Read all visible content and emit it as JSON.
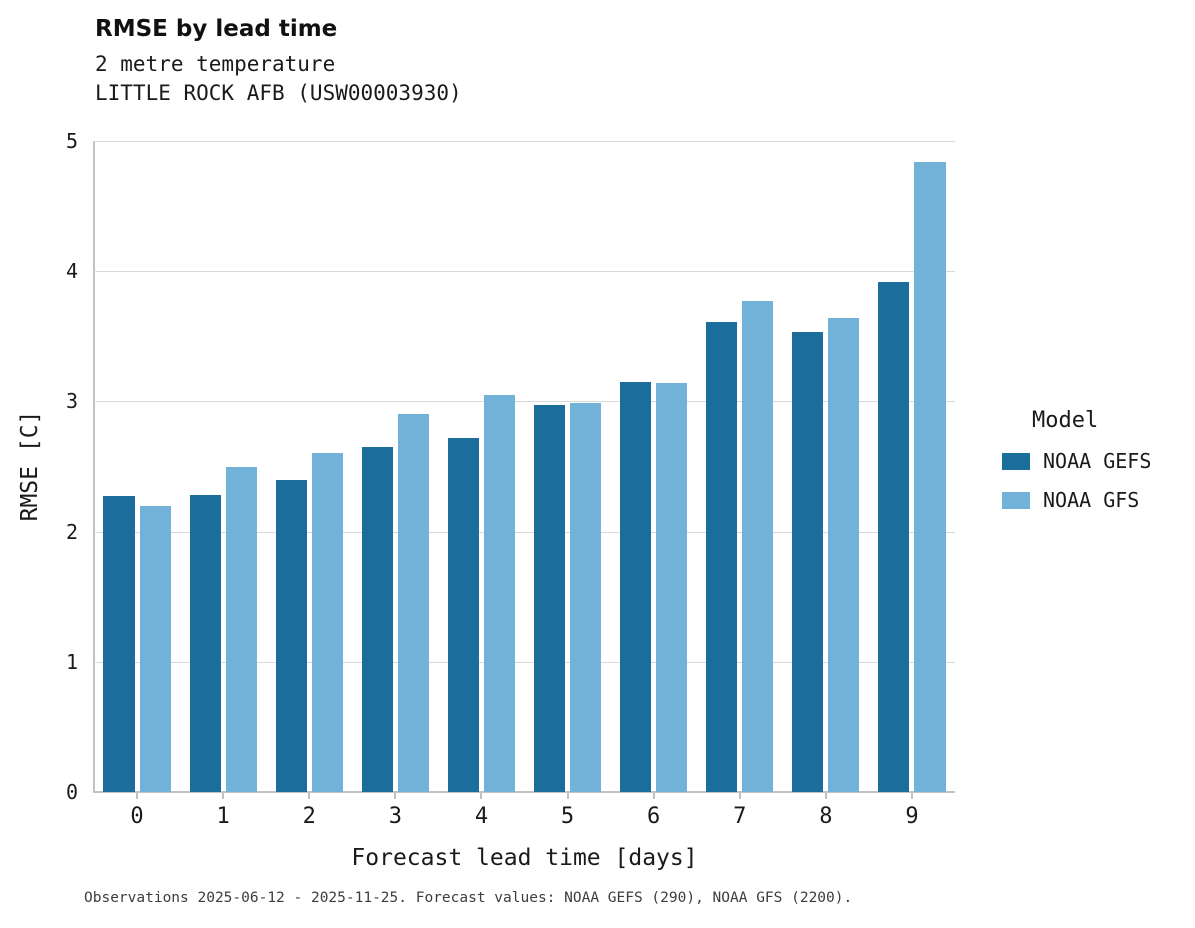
{
  "chart_data": {
    "type": "bar",
    "title": "RMSE by lead time",
    "subtitle_line1": "2 metre temperature",
    "subtitle_line2": "LITTLE ROCK AFB (USW00003930)",
    "xlabel": "Forecast lead time [days]",
    "ylabel": "RMSE [C]",
    "categories": [
      "0",
      "1",
      "2",
      "3",
      "4",
      "5",
      "6",
      "7",
      "8",
      "9"
    ],
    "series": [
      {
        "name": "NOAA GEFS",
        "color": "#1b6d9c",
        "values": [
          2.27,
          2.28,
          2.4,
          2.65,
          2.72,
          2.97,
          3.15,
          3.61,
          3.53,
          3.92
        ]
      },
      {
        "name": "NOAA GFS",
        "color": "#72b2d8",
        "values": [
          2.2,
          2.5,
          2.6,
          2.9,
          3.05,
          2.99,
          3.14,
          3.77,
          3.64,
          4.84
        ]
      }
    ],
    "ylim": [
      0,
      5
    ],
    "yticks": [
      0,
      1,
      2,
      3,
      4,
      5
    ],
    "grid": "horizontal",
    "legend_title": "Model",
    "legend_position": "right",
    "caption": "Observations 2025-06-12 - 2025-11-25. Forecast values: NOAA GEFS (290), NOAA GFS (2200)."
  },
  "colors": {
    "gridline": "#d9d9d9",
    "spine": "#c2c2c2",
    "text": "#1a1a1a",
    "caption": "#3d3d3d"
  }
}
